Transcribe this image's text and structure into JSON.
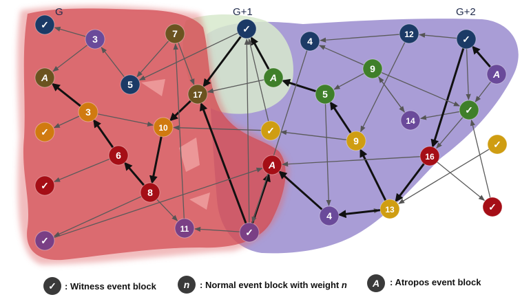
{
  "regions": {
    "g": "G",
    "g1": "G+1",
    "g2": "G+2"
  },
  "legend": {
    "witness_symbol": "✓",
    "witness_text": ": Witness event block",
    "normal_symbol": "n",
    "normal_text_prefix": ": Normal event block with weight ",
    "normal_text_var": "n",
    "atropos_symbol": "A",
    "atropos_text": ": Atropos event block"
  },
  "colors": {
    "red": "#a50e16",
    "orange": "#d07a10",
    "olive": "#6b5320",
    "purple": "#6a4a9a",
    "navy": "#1b3a66",
    "green": "#3f7f2a",
    "gold": "#cf9d12",
    "magenta": "#7a3f85",
    "dark": "#3a3a3a",
    "region_g": "#c8303a",
    "region_g1": "#cfe3c4",
    "region_g2": "#8c7cc8"
  },
  "nodes": [
    {
      "id": "n_w_top_left",
      "label": "✓",
      "kind": "witness",
      "color": "navy"
    },
    {
      "id": "n3_top",
      "label": "3",
      "kind": "normal",
      "color": "purple"
    },
    {
      "id": "n7",
      "label": "7",
      "kind": "normal",
      "color": "olive"
    },
    {
      "id": "n_a_left",
      "label": "A",
      "kind": "atropos",
      "color": "olive"
    },
    {
      "id": "n5_left",
      "label": "5",
      "kind": "normal",
      "color": "navy"
    },
    {
      "id": "n3_mid",
      "label": "3",
      "kind": "normal",
      "color": "orange"
    },
    {
      "id": "n17",
      "label": "17",
      "kind": "normal",
      "color": "olive"
    },
    {
      "id": "n_w_orange",
      "label": "✓",
      "kind": "witness",
      "color": "orange"
    },
    {
      "id": "n10",
      "label": "10",
      "kind": "normal",
      "color": "orange"
    },
    {
      "id": "n6",
      "label": "6",
      "kind": "normal",
      "color": "red"
    },
    {
      "id": "n_w_red_left",
      "label": "✓",
      "kind": "witness",
      "color": "red"
    },
    {
      "id": "n8",
      "label": "8",
      "kind": "normal",
      "color": "red"
    },
    {
      "id": "n11",
      "label": "11",
      "kind": "normal",
      "color": "magenta"
    },
    {
      "id": "n_w_purple_left",
      "label": "✓",
      "kind": "witness",
      "color": "magenta"
    },
    {
      "id": "n_w_purple_mid",
      "label": "✓",
      "kind": "witness",
      "color": "magenta"
    },
    {
      "id": "n_a_red",
      "label": "A",
      "kind": "atropos",
      "color": "red"
    },
    {
      "id": "n_w_navy_g1",
      "label": "✓",
      "kind": "witness",
      "color": "navy"
    },
    {
      "id": "n_a_green",
      "label": "A",
      "kind": "atropos",
      "color": "green"
    },
    {
      "id": "n_w_gold_g1",
      "label": "✓",
      "kind": "witness",
      "color": "gold"
    },
    {
      "id": "n4_top",
      "label": "4",
      "kind": "normal",
      "color": "navy"
    },
    {
      "id": "n9_green",
      "label": "9",
      "kind": "normal",
      "color": "green"
    },
    {
      "id": "n5_green",
      "label": "5",
      "kind": "normal",
      "color": "green"
    },
    {
      "id": "n9_gold",
      "label": "9",
      "kind": "normal",
      "color": "gold"
    },
    {
      "id": "n4_purple",
      "label": "4",
      "kind": "normal",
      "color": "purple"
    },
    {
      "id": "n13",
      "label": "13",
      "kind": "normal",
      "color": "gold"
    },
    {
      "id": "n12",
      "label": "12",
      "kind": "normal",
      "color": "navy"
    },
    {
      "id": "n14",
      "label": "14",
      "kind": "normal",
      "color": "purple"
    },
    {
      "id": "n16",
      "label": "16",
      "kind": "normal",
      "color": "red"
    },
    {
      "id": "n_w_navy_g2",
      "label": "✓",
      "kind": "witness",
      "color": "navy"
    },
    {
      "id": "n_a_purple",
      "label": "A",
      "kind": "atropos",
      "color": "purple"
    },
    {
      "id": "n_w_green_g2",
      "label": "✓",
      "kind": "witness",
      "color": "green"
    },
    {
      "id": "n_w_gold_g2",
      "label": "✓",
      "kind": "witness",
      "color": "gold"
    },
    {
      "id": "n_w_red_g2",
      "label": "✓",
      "kind": "witness",
      "color": "red"
    }
  ]
}
